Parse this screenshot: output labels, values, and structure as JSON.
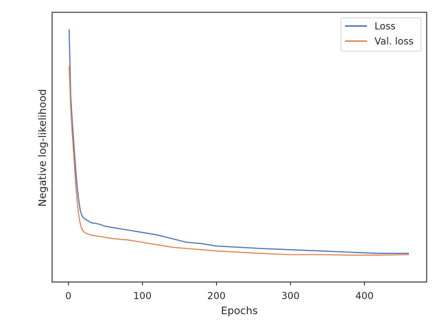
{
  "chart_data": {
    "type": "line",
    "title": "",
    "xlabel": "Epochs",
    "ylabel": "Negative log-likelihood",
    "xlim": [
      -22,
      484
    ],
    "ylim": [
      0.0,
      1.0
    ],
    "x_ticks": [
      0,
      100,
      200,
      300,
      400
    ],
    "y_tick_labels_shown": false,
    "grid": false,
    "legend": {
      "position": "top-right",
      "entries": [
        "Loss",
        "Val. loss"
      ]
    },
    "series": [
      {
        "name": "Loss",
        "color": "#4c72b0",
        "x": [
          1,
          3,
          5,
          8,
          10,
          12,
          14,
          16,
          18,
          20,
          22,
          25,
          30,
          40,
          50,
          60,
          80,
          100,
          120,
          140,
          160,
          180,
          200,
          230,
          260,
          300,
          340,
          380,
          420,
          460
        ],
        "y": [
          0.965,
          0.7,
          0.6,
          0.47,
          0.39,
          0.32,
          0.27,
          0.23,
          0.21,
          0.2,
          0.195,
          0.19,
          0.18,
          0.175,
          0.165,
          0.16,
          0.15,
          0.14,
          0.13,
          0.115,
          0.1,
          0.095,
          0.085,
          0.08,
          0.075,
          0.07,
          0.065,
          0.06,
          0.055,
          0.055
        ]
      },
      {
        "name": "Val. loss",
        "color": "#dd8452",
        "x": [
          1,
          3,
          5,
          8,
          10,
          12,
          14,
          16,
          18,
          20,
          22,
          25,
          30,
          40,
          50,
          60,
          80,
          100,
          120,
          140,
          160,
          180,
          200,
          230,
          260,
          300,
          340,
          380,
          420,
          460
        ],
        "y": [
          0.815,
          0.65,
          0.55,
          0.42,
          0.33,
          0.26,
          0.21,
          0.175,
          0.155,
          0.145,
          0.14,
          0.135,
          0.13,
          0.125,
          0.12,
          0.115,
          0.11,
          0.1,
          0.09,
          0.08,
          0.075,
          0.07,
          0.065,
          0.06,
          0.055,
          0.05,
          0.05,
          0.048,
          0.048,
          0.05
        ]
      }
    ]
  }
}
